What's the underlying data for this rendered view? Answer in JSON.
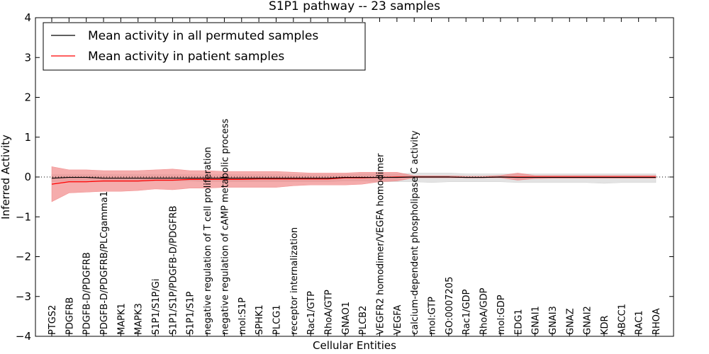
{
  "chart_data": {
    "type": "line",
    "title": "S1P1 pathway -- 23 samples",
    "xlabel": "Cellular Entities",
    "ylabel": "Inferred Activity",
    "ylim": [
      -4,
      4
    ],
    "yticks": [
      -4,
      -3,
      -2,
      -1,
      0,
      1,
      2,
      3,
      4
    ],
    "ytick_labels": [
      "−4",
      "−3",
      "−2",
      "−1",
      "0",
      "1",
      "2",
      "3",
      "4"
    ],
    "categories": [
      "PTGS2",
      "PDGFRB",
      "PDGFB-D/PDGFRB",
      "PDGFB-D/PDGFRB/PLCgamma1",
      "MAPK1",
      "MAPK3",
      "S1P1/S1P/Gi",
      "S1P1/S1P/PDGFB-D/PDGFRB",
      "S1P1/S1P",
      "negative regulation of T cell proliferation",
      "negative regulation of cAMP metabolic process",
      "mol:S1P",
      "SPHK1",
      "PLCG1",
      "receptor internalization",
      "Rac1/GTP",
      "RhoA/GTP",
      "GNAO1",
      "PLCB2",
      "VEGFR2 homodimer/VEGFA homodimer",
      "VEGFA",
      "calcium-dependent phospholipase C activity",
      "mol:GTP",
      "GO:0007205",
      "Rac1/GDP",
      "RhoA/GDP",
      "mol:GDP",
      "EDG1",
      "GNAI1",
      "GNAI3",
      "GNAZ",
      "GNAI2",
      "KDR",
      "ABCC1",
      "RAC1",
      "RHOA"
    ],
    "series": [
      {
        "name": "Mean activity in all permuted samples",
        "color": "#000000",
        "values": [
          -0.03,
          -0.01,
          -0.01,
          -0.03,
          -0.03,
          -0.03,
          -0.03,
          -0.03,
          -0.03,
          -0.03,
          -0.03,
          -0.03,
          -0.03,
          -0.03,
          -0.03,
          -0.03,
          -0.03,
          -0.01,
          -0.01,
          -0.01,
          -0.01,
          0.0,
          0.0,
          0.0,
          -0.01,
          -0.01,
          0.0,
          -0.01,
          -0.01,
          -0.01,
          -0.01,
          -0.01,
          -0.01,
          -0.01,
          -0.01,
          -0.01
        ],
        "band_low": [
          -0.12,
          -0.1,
          -0.1,
          -0.12,
          -0.12,
          -0.12,
          -0.1,
          -0.1,
          -0.1,
          -0.12,
          -0.12,
          -0.12,
          -0.12,
          -0.12,
          -0.12,
          -0.12,
          -0.12,
          -0.1,
          -0.1,
          -0.12,
          -0.12,
          -0.12,
          -0.14,
          -0.12,
          -0.12,
          -0.12,
          -0.12,
          -0.14,
          -0.14,
          -0.14,
          -0.14,
          -0.14,
          -0.16,
          -0.14,
          -0.14,
          -0.14
        ],
        "band_high": [
          0.06,
          0.06,
          0.06,
          0.06,
          0.06,
          0.06,
          0.06,
          0.06,
          0.06,
          0.06,
          0.06,
          0.06,
          0.06,
          0.06,
          0.06,
          0.06,
          0.06,
          0.06,
          0.08,
          0.08,
          0.08,
          0.1,
          0.1,
          0.1,
          0.08,
          0.08,
          0.08,
          0.08,
          0.08,
          0.08,
          0.08,
          0.08,
          0.08,
          0.08,
          0.08,
          0.08
        ]
      },
      {
        "name": "Mean activity in patient samples",
        "color": "#ff0000",
        "values": [
          -0.18,
          -0.12,
          -0.12,
          -0.1,
          -0.1,
          -0.1,
          -0.08,
          -0.08,
          -0.06,
          -0.06,
          -0.06,
          -0.06,
          -0.05,
          -0.05,
          -0.05,
          -0.05,
          -0.05,
          -0.02,
          -0.02,
          -0.01,
          0.0,
          0.0,
          0.0,
          0.0,
          -0.01,
          -0.01,
          0.0,
          0.0,
          0.0,
          0.0,
          0.0,
          0.0,
          0.0,
          0.0,
          0.0,
          0.0
        ],
        "band_low": [
          -0.62,
          -0.4,
          -0.38,
          -0.36,
          -0.36,
          -0.34,
          -0.3,
          -0.32,
          -0.28,
          -0.28,
          -0.26,
          -0.26,
          -0.26,
          -0.26,
          -0.22,
          -0.2,
          -0.2,
          -0.2,
          -0.18,
          -0.12,
          -0.1,
          -0.02,
          -0.02,
          -0.02,
          -0.02,
          -0.02,
          -0.02,
          -0.08,
          -0.04,
          -0.03,
          -0.03,
          -0.03,
          -0.03,
          -0.03,
          -0.03,
          -0.03
        ],
        "band_high": [
          0.26,
          0.18,
          0.18,
          0.16,
          0.16,
          0.16,
          0.18,
          0.2,
          0.16,
          0.16,
          0.14,
          0.14,
          0.14,
          0.14,
          0.12,
          0.1,
          0.1,
          0.1,
          0.12,
          0.12,
          0.12,
          0.03,
          0.03,
          0.03,
          0.02,
          0.02,
          0.04,
          0.1,
          0.04,
          0.04,
          0.04,
          0.04,
          0.04,
          0.04,
          0.04,
          0.04
        ]
      }
    ],
    "reference_line": 0,
    "legend": "top-left"
  },
  "colors": {
    "permuted_band": "#cccccc",
    "patient_band": "#f08080",
    "permuted_line": "#000000",
    "patient_line": "#ff0000"
  }
}
